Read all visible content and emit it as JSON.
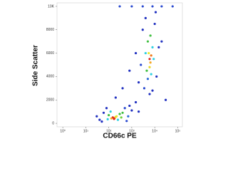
{
  "chart_data": {
    "type": "scatter",
    "x_label": "CD66c PE",
    "y_label": "Side Scatter",
    "x_log": true,
    "xlim": [
      0.56,
      160000
    ],
    "xticks": [
      {
        "value": 1,
        "label": "10⁰"
      },
      {
        "value": 10,
        "label": "10¹"
      },
      {
        "value": 100,
        "label": "10²"
      },
      {
        "value": 1000,
        "label": "10³"
      },
      {
        "value": 10000,
        "label": "10⁴"
      },
      {
        "value": 100000,
        "label": "10⁵"
      }
    ],
    "ylim": [
      -300,
      10300
    ],
    "yticks": [
      0,
      2000,
      4000,
      6000,
      8000,
      {
        "value": 10000,
        "label": "10K"
      }
    ],
    "x": [
      150,
      180,
      200,
      130,
      220,
      170,
      100,
      300,
      250,
      90,
      400,
      120,
      350,
      40,
      60,
      500,
      800,
      700,
      50,
      1000,
      30,
      600,
      1500,
      80,
      2000,
      6000,
      6500,
      5500,
      7000,
      6000,
      5000,
      8000,
      4500,
      7000,
      9000,
      5000,
      6500,
      4000,
      3000,
      10000,
      3500,
      12000,
      2500,
      15000,
      8000,
      4000,
      20000,
      2000,
      6000,
      11000,
      400,
      800,
      1500,
      200,
      30000,
      300,
      1000,
      3000,
      8000,
      20000,
      60000
    ],
    "values": [
      500,
      450,
      550,
      420,
      600,
      380,
      700,
      800,
      300,
      350,
      900,
      1000,
      500,
      300,
      900,
      1300,
      1500,
      600,
      150,
      1100,
      600,
      200,
      1800,
      1300,
      1000,
      5500,
      5200,
      6000,
      5800,
      4800,
      7000,
      6500,
      4500,
      4200,
      5500,
      3800,
      7500,
      6000,
      8000,
      8500,
      3000,
      4000,
      5000,
      6500,
      2800,
      9000,
      7000,
      3500,
      2500,
      9500,
      3000,
      4500,
      6000,
      2200,
      2000,
      10000,
      10000,
      10000,
      10000,
      10000,
      10000
    ],
    "colors": [
      "#e0201b",
      "#f07a1a",
      "#e8d82a",
      "#f5a623",
      "#e8e82a",
      "#e0201b",
      "#3fbf3f",
      "#3fbf3f",
      "#2fd0e0",
      "#2fd0e0",
      "#3fbf3f",
      "#2fd0e0",
      "#6fd23a",
      "#2030c0",
      "#2030c0",
      "#2a4ad0",
      "#2030c0",
      "#2a6ad8",
      "#2030c0",
      "#2030c0",
      "#2030c0",
      "#2a4ad0",
      "#2030c0",
      "#2030c0",
      "#2030c0",
      "#e0201b",
      "#f5a623",
      "#e8e82a",
      "#f07a1a",
      "#e8d82a",
      "#3fbf3f",
      "#2fd0e0",
      "#3fbf3f",
      "#2fd0e0",
      "#2fd0e0",
      "#2a6ad8",
      "#3fbf3f",
      "#2fd0e0",
      "#2030c0",
      "#2030c0",
      "#2a4ad0",
      "#2030c0",
      "#2a4ad0",
      "#2030c0",
      "#2030c0",
      "#2030c0",
      "#2030c0",
      "#2030c0",
      "#2030c0",
      "#2030c0",
      "#2030c0",
      "#2030c0",
      "#2030c0",
      "#2030c0",
      "#2030c0",
      "#2a4ad0",
      "#2a4ad0",
      "#2a4ad0",
      "#2a4ad0",
      "#2a4ad0",
      "#2a4ad0"
    ]
  }
}
